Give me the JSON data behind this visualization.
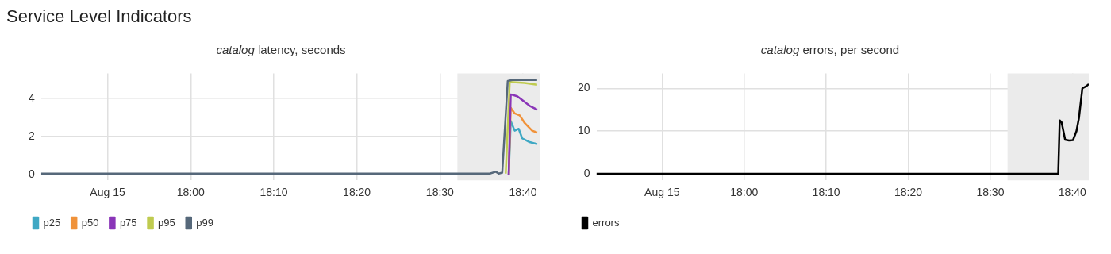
{
  "chart_data": [
    {
      "type": "line",
      "title": "Service Level Indicators",
      "subtitle": "catalog latency, seconds",
      "xlim": [
        17.7,
        18.7
      ],
      "xticks": [
        {
          "value": 17.8333,
          "label": "Aug 15"
        },
        {
          "value": 18,
          "label": "18:00"
        },
        {
          "value": 18.1667,
          "label": "18:10"
        },
        {
          "value": 18.3333,
          "label": "18:20"
        },
        {
          "value": 18.5,
          "label": "18:30"
        },
        {
          "value": 18.6667,
          "label": "18:40"
        }
      ],
      "ylim": [
        -0.3,
        5.3
      ],
      "yticks": [
        0,
        2,
        4
      ],
      "grid": true,
      "legend": "bottom left",
      "line_style": "solid",
      "bands": [
        {
          "axis": "x",
          "from": 18.535,
          "to": 18.7,
          "color": "#ebebeb"
        }
      ],
      "series": [
        {
          "name": "p25",
          "color": "#3fa8c4",
          "x": [
            18.638,
            18.642,
            18.65,
            18.658,
            18.665,
            18.68,
            18.695
          ],
          "values": [
            0,
            2.8,
            2.3,
            2.4,
            1.9,
            1.7,
            1.6
          ]
        },
        {
          "name": "p50",
          "color": "#f0923a",
          "x": [
            18.638,
            18.642,
            18.65,
            18.66,
            18.67,
            18.685,
            18.695
          ],
          "values": [
            0,
            3.5,
            3.2,
            3.1,
            2.7,
            2.3,
            2.2
          ]
        },
        {
          "name": "p75",
          "color": "#8a35b8",
          "x": [
            18.638,
            18.642,
            18.655,
            18.665,
            18.68,
            18.695
          ],
          "values": [
            0,
            4.2,
            4.1,
            3.9,
            3.6,
            3.4
          ]
        },
        {
          "name": "p95",
          "color": "#bfcb4f",
          "x": [
            18.632,
            18.64,
            18.67,
            18.695
          ],
          "values": [
            0.05,
            4.85,
            4.8,
            4.7
          ]
        },
        {
          "name": "p99",
          "color": "#56687a",
          "x": [
            17.7,
            18.6,
            18.612,
            18.618,
            18.625,
            18.636,
            18.645,
            18.695
          ],
          "values": [
            0.05,
            0.05,
            0.15,
            0.05,
            0.1,
            4.9,
            4.95,
            4.95
          ]
        }
      ]
    },
    {
      "type": "line",
      "subtitle": "catalog errors, per second",
      "xlim": [
        17.7,
        18.7
      ],
      "xticks": [
        {
          "value": 17.8333,
          "label": "Aug 15"
        },
        {
          "value": 18,
          "label": "18:00"
        },
        {
          "value": 18.1667,
          "label": "18:10"
        },
        {
          "value": 18.3333,
          "label": "18:20"
        },
        {
          "value": 18.5,
          "label": "18:30"
        },
        {
          "value": 18.6667,
          "label": "18:40"
        }
      ],
      "ylim": [
        -1.5,
        23.5
      ],
      "yticks": [
        0,
        10,
        20
      ],
      "grid": true,
      "legend": "bottom left",
      "line_style": "solid",
      "bands": [
        {
          "axis": "x",
          "from": 18.535,
          "to": 18.7,
          "color": "#ebebeb"
        }
      ],
      "series": [
        {
          "name": "errors",
          "color": "#000000",
          "x": [
            17.7,
            18.638,
            18.641,
            18.645,
            18.652,
            18.66,
            18.668,
            18.675,
            18.68,
            18.687,
            18.695,
            18.7
          ],
          "values": [
            0,
            0,
            12.5,
            12,
            8,
            7.8,
            7.9,
            10,
            13,
            20,
            20.5,
            21
          ]
        }
      ]
    }
  ]
}
